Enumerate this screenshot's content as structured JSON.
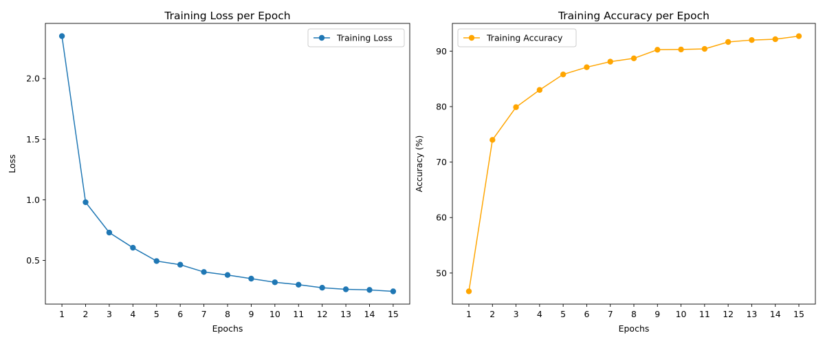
{
  "chart_data": [
    {
      "type": "line",
      "title": "Training Loss per Epoch",
      "xlabel": "Epochs",
      "ylabel": "Loss",
      "x": [
        1,
        2,
        3,
        4,
        5,
        6,
        7,
        8,
        9,
        10,
        11,
        12,
        13,
        14,
        15
      ],
      "series": [
        {
          "name": "Training Loss",
          "color": "#1f77b4",
          "marker": "circle",
          "values": [
            2.35,
            0.98,
            0.73,
            0.605,
            0.495,
            0.465,
            0.405,
            0.38,
            0.35,
            0.32,
            0.3,
            0.275,
            0.262,
            0.257,
            0.245
          ]
        }
      ],
      "xticks": [
        "1",
        "2",
        "3",
        "4",
        "5",
        "6",
        "7",
        "8",
        "9",
        "10",
        "11",
        "12",
        "13",
        "14",
        "15"
      ],
      "yticks": [
        0.5,
        1.0,
        1.5,
        2.0
      ],
      "ytick_labels": [
        "0.5",
        "1.0",
        "1.5",
        "2.0"
      ],
      "ylim": [
        0.14,
        2.455
      ],
      "xlim": [
        0.3,
        15.7
      ],
      "legend_position": "top-right",
      "grid": false
    },
    {
      "type": "line",
      "title": "Training Accuracy per Epoch",
      "xlabel": "Epochs",
      "ylabel": "Accuracy (%)",
      "x": [
        1,
        2,
        3,
        4,
        5,
        6,
        7,
        8,
        9,
        10,
        11,
        12,
        13,
        14,
        15
      ],
      "series": [
        {
          "name": "Training Accuracy",
          "color": "#ffa500",
          "marker": "circle",
          "values": [
            46.7,
            74.0,
            79.9,
            83.0,
            85.8,
            87.1,
            88.1,
            88.7,
            90.25,
            90.3,
            90.4,
            91.65,
            92.0,
            92.15,
            92.7
          ]
        }
      ],
      "xticks": [
        "1",
        "2",
        "3",
        "4",
        "5",
        "6",
        "7",
        "8",
        "9",
        "10",
        "11",
        "12",
        "13",
        "14",
        "15"
      ],
      "yticks": [
        50,
        60,
        70,
        80,
        90
      ],
      "ytick_labels": [
        "50",
        "60",
        "70",
        "80",
        "90"
      ],
      "ylim": [
        44.4,
        95.0
      ],
      "xlim": [
        0.3,
        15.7
      ],
      "legend_position": "top-left",
      "grid": false
    }
  ]
}
